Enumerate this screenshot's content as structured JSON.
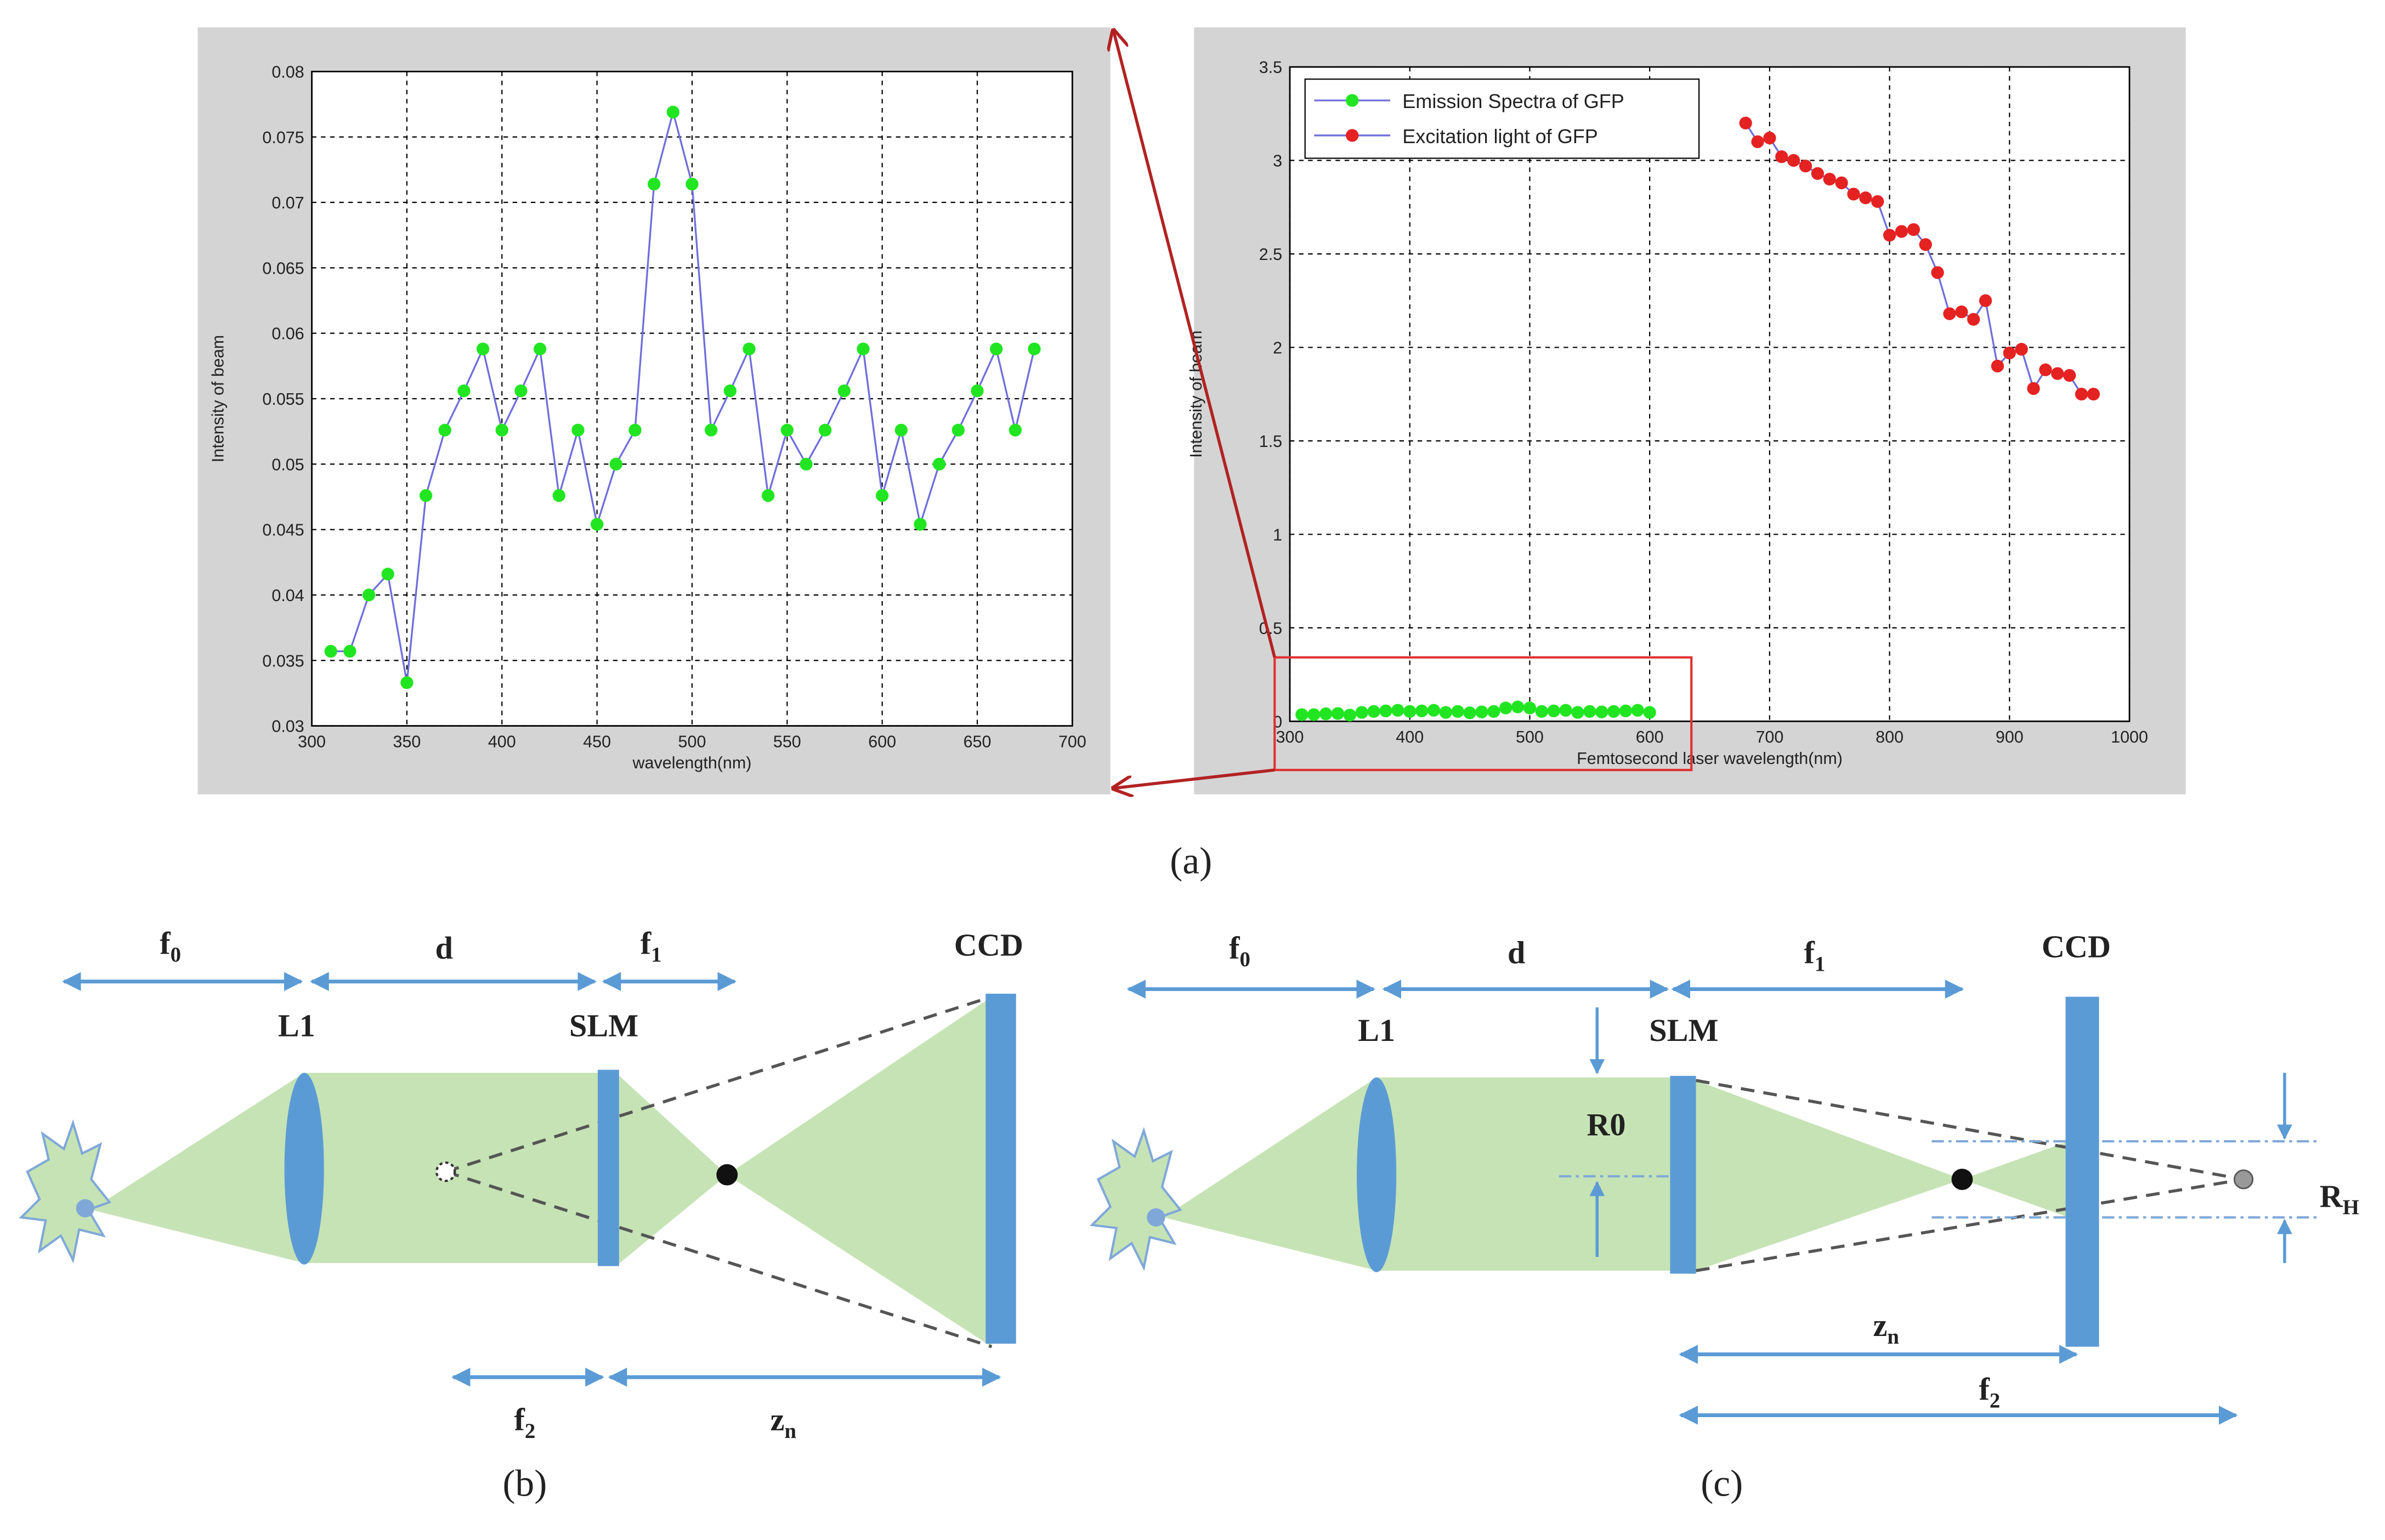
{
  "chart_data": [
    {
      "type": "line",
      "xlabel": "wavelength(nm)",
      "ylabel": "Intensity of beam",
      "x": [
        310,
        320,
        330,
        340,
        350,
        360,
        370,
        380,
        390,
        400,
        410,
        420,
        430,
        440,
        450,
        460,
        470,
        480,
        490,
        500,
        510,
        520,
        530,
        540,
        550,
        560,
        570,
        580,
        590,
        600,
        610,
        620,
        630,
        640,
        650,
        660,
        670,
        680
      ],
      "values": [
        0.0357,
        0.0357,
        0.04,
        0.0416,
        0.0333,
        0.0476,
        0.0526,
        0.0556,
        0.0588,
        0.0526,
        0.0556,
        0.0588,
        0.0476,
        0.0526,
        0.0454,
        0.05,
        0.0526,
        0.0714,
        0.0769,
        0.0714,
        0.0526,
        0.0556,
        0.0588,
        0.0476,
        0.0526,
        0.05,
        0.0526,
        0.0556,
        0.0588,
        0.0476,
        0.0526,
        0.0454,
        0.05,
        0.0526,
        0.0556,
        0.0588,
        0.0526,
        0.0588
      ],
      "line_color": "#6f6fdc",
      "marker_color": "#22e522",
      "xlim": [
        300,
        700
      ],
      "xticks": [
        300,
        350,
        400,
        450,
        500,
        550,
        600,
        650,
        700
      ],
      "ylim": [
        0.03,
        0.08
      ],
      "yticks": [
        0.03,
        0.035,
        0.04,
        0.045,
        0.05,
        0.055,
        0.06,
        0.065,
        0.07,
        0.075,
        0.08
      ],
      "grid": true
    },
    {
      "type": "line",
      "xlabel": "Femtosecond laser wavelength(nm)",
      "ylabel": "Intensity of beam",
      "series": [
        {
          "name": "Emission Spectra of GFP",
          "line_color": "#6f6fdc",
          "marker_color": "#22e522",
          "x": [
            310,
            320,
            330,
            340,
            350,
            360,
            370,
            380,
            390,
            400,
            410,
            420,
            430,
            440,
            450,
            460,
            470,
            480,
            490,
            500,
            510,
            520,
            530,
            540,
            550,
            560,
            570,
            580,
            590,
            600
          ],
          "values": [
            0.0357,
            0.0357,
            0.04,
            0.0416,
            0.0333,
            0.0476,
            0.0526,
            0.0556,
            0.0588,
            0.0526,
            0.0556,
            0.0588,
            0.0476,
            0.0526,
            0.0454,
            0.05,
            0.0526,
            0.0714,
            0.0769,
            0.0714,
            0.0526,
            0.0556,
            0.0588,
            0.0476,
            0.0526,
            0.05,
            0.0526,
            0.0556,
            0.0588,
            0.0476
          ]
        },
        {
          "name": "Excitation light of GFP",
          "line_color": "#6f6fdc",
          "marker_color": "#e52222",
          "x": [
            680,
            690,
            700,
            710,
            720,
            730,
            740,
            750,
            760,
            770,
            780,
            790,
            800,
            810,
            820,
            830,
            840,
            850,
            860,
            870,
            880,
            890,
            900,
            910,
            920,
            930,
            940,
            950,
            960,
            970
          ],
          "values": [
            3.2,
            3.1,
            3.12,
            3.02,
            3.0,
            2.97,
            2.93,
            2.9,
            2.88,
            2.82,
            2.8,
            2.78,
            2.6,
            2.62,
            2.63,
            2.55,
            2.4,
            2.18,
            2.19,
            2.15,
            2.25,
            1.9,
            1.97,
            1.99,
            1.78,
            1.88,
            1.86,
            1.85,
            1.75,
            1.75
          ]
        }
      ],
      "xlim": [
        300,
        1000
      ],
      "xticks": [
        300,
        400,
        500,
        600,
        700,
        800,
        900,
        1000
      ],
      "ylim": [
        0,
        3.5
      ],
      "yticks": [
        0,
        0.5,
        1,
        1.5,
        2,
        2.5,
        3,
        3.5
      ],
      "grid": true,
      "legend": "upper left"
    }
  ],
  "panel_labels": [
    "(a)",
    "(b)",
    "(c)"
  ],
  "diagram_b": {
    "f0": [
      "f",
      "0"
    ],
    "d": "d",
    "f1": [
      "f",
      "1"
    ],
    "L1": "L1",
    "SLM": "SLM",
    "CCD": "CCD",
    "f2": [
      "f",
      "2"
    ],
    "zn": [
      "z",
      "n"
    ]
  },
  "diagram_c": {
    "f0": [
      "f",
      "0"
    ],
    "d": "d",
    "f1": [
      "f",
      "1"
    ],
    "L1": "L1",
    "SLM": "SLM",
    "CCD": "CCD",
    "R0": "R0",
    "RH": [
      "R",
      "H"
    ],
    "zn": [
      "z",
      "n"
    ],
    "f2": [
      "f",
      "2"
    ]
  }
}
